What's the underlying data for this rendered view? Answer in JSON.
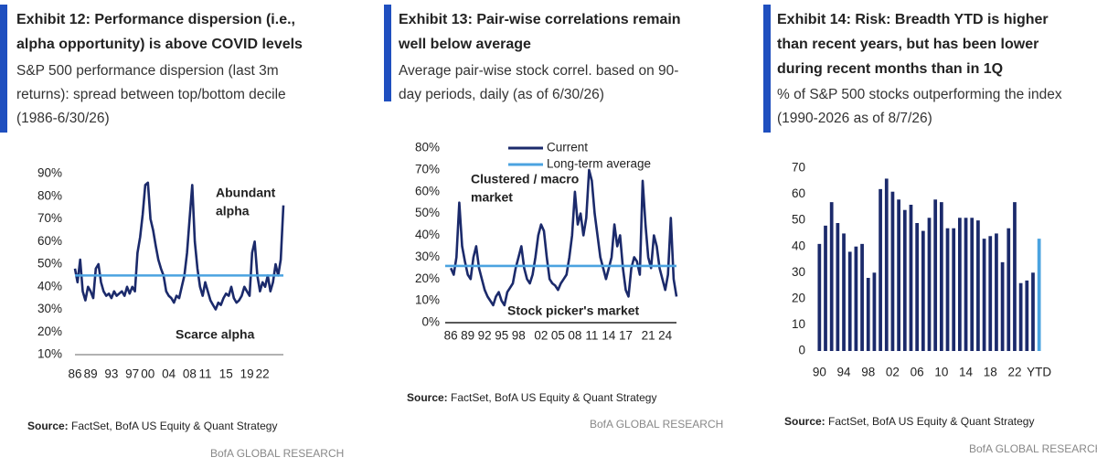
{
  "chart_data": [
    {
      "type": "line",
      "title": [
        "Exhibit 12: Performance dispersion (i.e.,",
        "alpha opportunity) is above COVID levels"
      ],
      "subtitle": [
        "S&P 500 performance dispersion (last 3m",
        "returns): spread between top/bottom decile",
        "(1986-6/30/26)"
      ],
      "annotations": [
        [
          "Abundant",
          "alpha"
        ],
        [
          "Scarce alpha"
        ]
      ],
      "x": [
        1986,
        1986.5,
        1987,
        1987.5,
        1988,
        1988.5,
        1989,
        1989.5,
        1990,
        1990.5,
        1991,
        1991.5,
        1992,
        1992.5,
        1993,
        1993.5,
        1994,
        1994.5,
        1995,
        1995.5,
        1996,
        1996.5,
        1997,
        1997.5,
        1998,
        1998.5,
        1999,
        1999.5,
        2000,
        2000.5,
        2001,
        2001.5,
        2002,
        2002.5,
        2003,
        2003.5,
        2004,
        2004.5,
        2005,
        2005.5,
        2006,
        2006.5,
        2007,
        2007.5,
        2008,
        2008.5,
        2009,
        2009.5,
        2010,
        2010.5,
        2011,
        2011.5,
        2012,
        2012.5,
        2013,
        2013.5,
        2014,
        2014.5,
        2015,
        2015.5,
        2016,
        2016.5,
        2017,
        2017.5,
        2018,
        2018.5,
        2019,
        2019.5,
        2020,
        2020.5,
        2021,
        2021.5,
        2022,
        2022.5,
        2023,
        2023.5,
        2024,
        2024.5,
        2025,
        2025.5,
        2026
      ],
      "series": [
        {
          "color": "#1b2a6b",
          "values": [
            48,
            42,
            52,
            38,
            34,
            40,
            38,
            35,
            48,
            50,
            42,
            38,
            36,
            37,
            35,
            38,
            36,
            37,
            38,
            36,
            40,
            37,
            40,
            38,
            55,
            62,
            72,
            85,
            86,
            70,
            65,
            58,
            52,
            48,
            45,
            38,
            36,
            35,
            33,
            36,
            35,
            40,
            45,
            55,
            70,
            85,
            60,
            48,
            40,
            36,
            42,
            38,
            34,
            32,
            30,
            33,
            32,
            35,
            37,
            36,
            40,
            35,
            33,
            34,
            36,
            40,
            38,
            36,
            55,
            60,
            45,
            38,
            42,
            40,
            45,
            38,
            42,
            50,
            45,
            52,
            76
          ]
        },
        {
          "color": "#4ba3e0",
          "value": 45
        }
      ],
      "xlim": [
        1986,
        2026
      ],
      "xticks": [
        {
          "value": 1986,
          "label": "86"
        },
        {
          "value": 1989,
          "label": "89"
        },
        {
          "value": 1993,
          "label": "93"
        },
        {
          "value": 1997,
          "label": "97"
        },
        {
          "value": 2000,
          "label": "00"
        },
        {
          "value": 2004,
          "label": "04"
        },
        {
          "value": 2008,
          "label": "08"
        },
        {
          "value": 2011,
          "label": "11"
        },
        {
          "value": 2015,
          "label": "15"
        },
        {
          "value": 2019,
          "label": "19"
        },
        {
          "value": 2022,
          "label": "22"
        }
      ],
      "ylim": [
        10,
        90
      ],
      "yticks": [
        {
          "value": 10,
          "label": "10%"
        },
        {
          "value": 20,
          "label": "20%"
        },
        {
          "value": 30,
          "label": "30%"
        },
        {
          "value": 40,
          "label": "40%"
        },
        {
          "value": 50,
          "label": "50%"
        },
        {
          "value": 60,
          "label": "60%"
        },
        {
          "value": 70,
          "label": "70%"
        },
        {
          "value": 80,
          "label": "80%"
        },
        {
          "value": 90,
          "label": "90%"
        }
      ],
      "source_label": "Source:",
      "source": "FactSet, BofA US Equity & Quant Strategy",
      "footer": "BofA GLOBAL RESEARCH"
    },
    {
      "type": "line",
      "title": [
        "Exhibit 13: Pair-wise correlations remain",
        "well below average"
      ],
      "subtitle": [
        "Average pair-wise stock correl. based on 90-",
        "day periods, daily (as of 6/30/26)"
      ],
      "annotations": [
        [
          "Clustered / macro",
          "market"
        ],
        [
          "Stock picker's market"
        ]
      ],
      "x": [
        1986,
        1986.5,
        1987,
        1987.5,
        1988,
        1988.5,
        1989,
        1989.5,
        1990,
        1990.5,
        1991,
        1991.5,
        1992,
        1992.5,
        1993,
        1993.5,
        1994,
        1994.5,
        1995,
        1995.5,
        1996,
        1996.5,
        1997,
        1997.5,
        1998,
        1998.5,
        1999,
        1999.5,
        2000,
        2000.5,
        2001,
        2001.5,
        2002,
        2002.5,
        2003,
        2003.5,
        2004,
        2004.5,
        2005,
        2005.5,
        2006,
        2006.5,
        2007,
        2007.5,
        2008,
        2008.5,
        2009,
        2009.5,
        2010,
        2010.5,
        2011,
        2011.5,
        2012,
        2012.5,
        2013,
        2013.5,
        2014,
        2014.5,
        2015,
        2015.5,
        2016,
        2016.5,
        2017,
        2017.5,
        2018,
        2018.5,
        2019,
        2019.5,
        2020,
        2020.5,
        2021,
        2021.5,
        2022,
        2022.5,
        2023,
        2023.5,
        2024,
        2024.5,
        2025,
        2025.5,
        2026
      ],
      "series": [
        {
          "name": "Current",
          "color": "#1b2a6b",
          "values": [
            25,
            22,
            30,
            55,
            35,
            28,
            22,
            20,
            30,
            35,
            25,
            20,
            15,
            12,
            10,
            8,
            12,
            14,
            10,
            8,
            14,
            16,
            18,
            25,
            30,
            35,
            25,
            20,
            18,
            22,
            30,
            40,
            45,
            42,
            30,
            20,
            18,
            17,
            15,
            18,
            20,
            22,
            30,
            40,
            60,
            45,
            50,
            40,
            48,
            70,
            65,
            50,
            40,
            30,
            25,
            20,
            25,
            30,
            45,
            35,
            40,
            25,
            15,
            12,
            25,
            30,
            28,
            22,
            65,
            45,
            30,
            25,
            40,
            35,
            25,
            20,
            15,
            22,
            48,
            20,
            12
          ]
        },
        {
          "name": "Long-term average",
          "color": "#4ba3e0",
          "value": 26
        }
      ],
      "xlim": [
        1985,
        2026
      ],
      "xticks": [
        {
          "value": 1986,
          "label": "86"
        },
        {
          "value": 1989,
          "label": "89"
        },
        {
          "value": 1992,
          "label": "92"
        },
        {
          "value": 1995,
          "label": "95"
        },
        {
          "value": 1998,
          "label": "98"
        },
        {
          "value": 2002,
          "label": "02"
        },
        {
          "value": 2005,
          "label": "05"
        },
        {
          "value": 2008,
          "label": "08"
        },
        {
          "value": 2011,
          "label": "11"
        },
        {
          "value": 2014,
          "label": "14"
        },
        {
          "value": 2017,
          "label": "17"
        },
        {
          "value": 2021,
          "label": "21"
        },
        {
          "value": 2024,
          "label": "24"
        }
      ],
      "ylim": [
        0,
        80
      ],
      "yticks": [
        {
          "value": 0,
          "label": "0%"
        },
        {
          "value": 10,
          "label": "10%"
        },
        {
          "value": 20,
          "label": "20%"
        },
        {
          "value": 30,
          "label": "30%"
        },
        {
          "value": 40,
          "label": "40%"
        },
        {
          "value": 50,
          "label": "50%"
        },
        {
          "value": 60,
          "label": "60%"
        },
        {
          "value": 70,
          "label": "70%"
        },
        {
          "value": 80,
          "label": "80%"
        }
      ],
      "source_label": "Source:",
      "source": "FactSet, BofA US Equity & Quant Strategy",
      "footer": "BofA GLOBAL RESEARCH"
    },
    {
      "type": "bar",
      "title": [
        "Exhibit 14: Risk: Breadth YTD is higher",
        "than recent years, but has been lower",
        "during recent months than in 1Q"
      ],
      "subtitle": [
        "% of S&P 500 stocks outperforming the index",
        "(1990-2026 as of 8/7/26)"
      ],
      "categories": [
        "90",
        null,
        null,
        null,
        "94",
        null,
        null,
        null,
        "98",
        null,
        null,
        null,
        "02",
        null,
        null,
        null,
        "06",
        null,
        null,
        null,
        "10",
        null,
        null,
        null,
        "14",
        null,
        null,
        null,
        "18",
        null,
        null,
        null,
        "22",
        null,
        null,
        null,
        "YTD"
      ],
      "values": [
        41,
        48,
        57,
        49,
        45,
        38,
        40,
        41,
        28,
        30,
        62,
        66,
        61,
        58,
        54,
        56,
        49,
        46,
        51,
        58,
        57,
        47,
        47,
        51,
        51,
        51,
        50,
        43,
        44,
        45,
        34,
        47,
        57,
        26,
        27,
        30,
        43
      ],
      "colors": [
        "#1b2a6b",
        "#1b2a6b",
        "#1b2a6b",
        "#1b2a6b",
        "#1b2a6b",
        "#1b2a6b",
        "#1b2a6b",
        "#1b2a6b",
        "#1b2a6b",
        "#1b2a6b",
        "#1b2a6b",
        "#1b2a6b",
        "#1b2a6b",
        "#1b2a6b",
        "#1b2a6b",
        "#1b2a6b",
        "#1b2a6b",
        "#1b2a6b",
        "#1b2a6b",
        "#1b2a6b",
        "#1b2a6b",
        "#1b2a6b",
        "#1b2a6b",
        "#1b2a6b",
        "#1b2a6b",
        "#1b2a6b",
        "#1b2a6b",
        "#1b2a6b",
        "#1b2a6b",
        "#1b2a6b",
        "#1b2a6b",
        "#1b2a6b",
        "#1b2a6b",
        "#1b2a6b",
        "#1b2a6b",
        "#1b2a6b",
        "#4ba3e0"
      ],
      "ylim": [
        0,
        70
      ],
      "yticks": [
        0,
        10,
        20,
        30,
        40,
        50,
        60,
        70
      ],
      "source_label": "Source:",
      "source": "FactSet, BofA US Equity & Quant Strategy",
      "footer": "BofA GLOBAL RESEARCH"
    }
  ]
}
